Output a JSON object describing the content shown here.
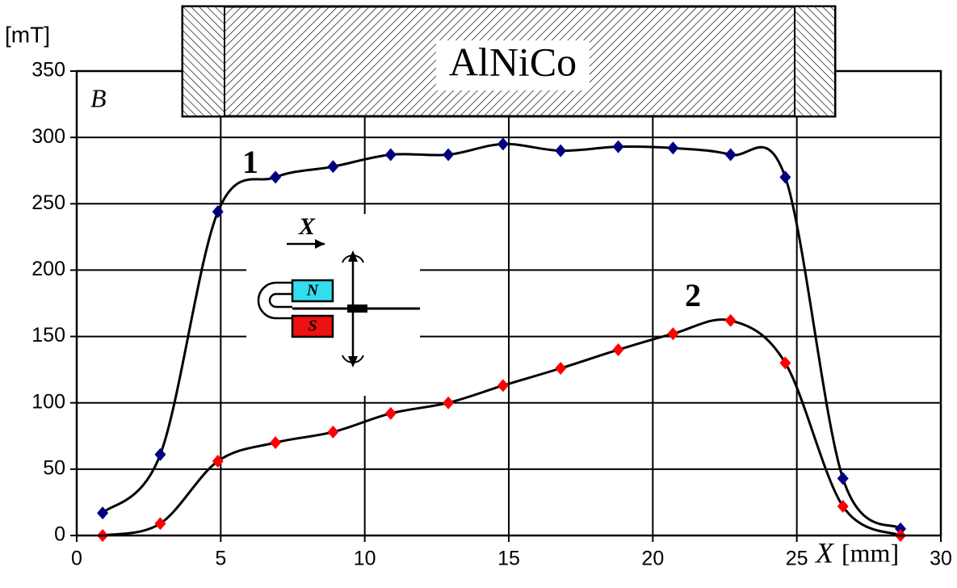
{
  "chart_data": {
    "type": "line",
    "y_unit": "[mT]",
    "y_symbol": "B",
    "x_symbol": "X",
    "x_unit": "[mm]",
    "magnet_label": "AlNiCo",
    "inset": {
      "direction": "X",
      "north": "N",
      "south": "S"
    },
    "series": [
      {
        "name": "1",
        "color": "#000080",
        "x": [
          0.9,
          2.9,
          4.9,
          6.9,
          8.9,
          10.9,
          12.9,
          14.8,
          16.8,
          18.8,
          20.7,
          22.7,
          24.6,
          26.6,
          28.6
        ],
        "values": [
          17,
          61,
          244,
          270,
          278,
          287,
          287,
          295,
          290,
          293,
          292,
          287,
          270,
          43,
          5
        ]
      },
      {
        "name": "2",
        "color": "#ff0000",
        "x": [
          0.9,
          2.9,
          4.9,
          6.9,
          8.9,
          10.9,
          12.9,
          14.8,
          16.8,
          18.8,
          20.7,
          22.7,
          24.6,
          26.6,
          28.6
        ],
        "values": [
          0,
          9,
          56,
          70,
          78,
          92,
          100,
          113,
          126,
          140,
          152,
          162,
          130,
          22,
          0
        ]
      }
    ],
    "xlim": [
      0,
      30
    ],
    "xticks": [
      0,
      5,
      10,
      15,
      20,
      25,
      30
    ],
    "ylim": [
      0,
      350
    ],
    "yticks": [
      0,
      50,
      100,
      150,
      200,
      250,
      300,
      350
    ],
    "grid": true
  }
}
